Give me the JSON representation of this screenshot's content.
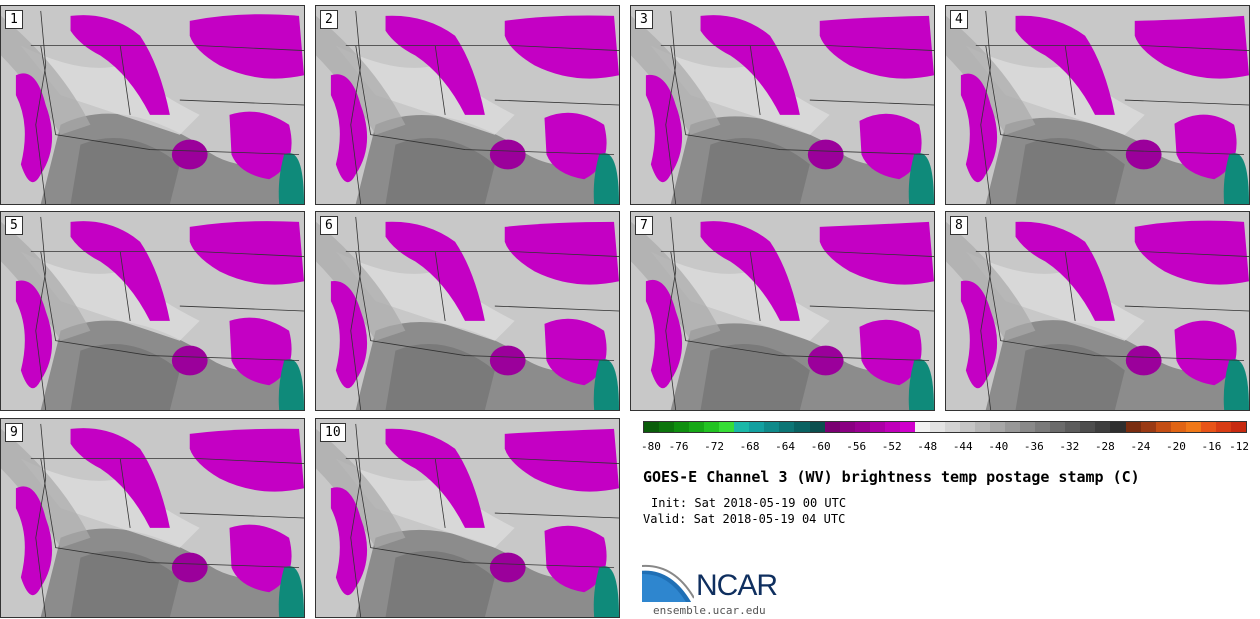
{
  "panels": [
    {
      "label": "1"
    },
    {
      "label": "2"
    },
    {
      "label": "3"
    },
    {
      "label": "4"
    },
    {
      "label": "5"
    },
    {
      "label": "6"
    },
    {
      "label": "7"
    },
    {
      "label": "8"
    },
    {
      "label": "9"
    },
    {
      "label": "10"
    }
  ],
  "colorbar": {
    "colors": [
      "#0a5d0a",
      "#0c750c",
      "#0f8f0f",
      "#16a816",
      "#22c322",
      "#36dd36",
      "#1ab8a8",
      "#13a0a0",
      "#0f8a8a",
      "#0c7575",
      "#096262",
      "#0b4f4f",
      "#7a0072",
      "#8a0082",
      "#9a0092",
      "#ac00a6",
      "#c000ba",
      "#d000cc",
      "#f2f2f2",
      "#e3e3e3",
      "#d4d4d4",
      "#c5c5c5",
      "#b6b6b6",
      "#a7a7a7",
      "#989898",
      "#898989",
      "#7a7a7a",
      "#6b6b6b",
      "#5c5c5c",
      "#4d4d4d",
      "#3e3e3e",
      "#2f2f2f",
      "#7a2d10",
      "#9a3a14",
      "#c44e14",
      "#e06414",
      "#f07818",
      "#e85418",
      "#d83c14",
      "#c82a10"
    ],
    "tick_labels": [
      "-80",
      "-76",
      "-72",
      "-68",
      "-64",
      "-60",
      "-56",
      "-52",
      "-48",
      "-44",
      "-40",
      "-36",
      "-32",
      "-28",
      "-24",
      "-20",
      "-16",
      "-12"
    ]
  },
  "title": "GOES-E Channel 3 (WV) brightness temp postage stamp (C)",
  "init_line": "Init: Sat 2018-05-19 00 UTC",
  "valid_line": "Valid: Sat 2018-05-19 04 UTC",
  "logo": {
    "text": "NCAR",
    "url": "ensemble.ucar.edu"
  }
}
